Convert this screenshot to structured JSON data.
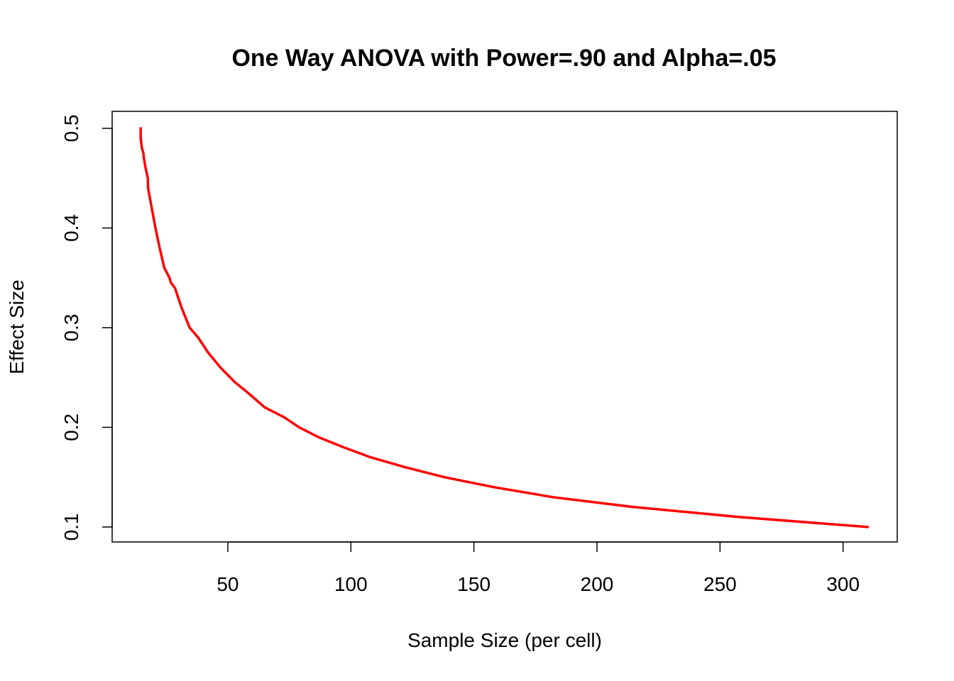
{
  "chart_data": {
    "type": "line",
    "title": "One Way ANOVA with Power=.90 and Alpha=.05",
    "xlabel": "Sample Size (per cell)",
    "ylabel": "Effect Size",
    "xlim": [
      3,
      322
    ],
    "ylim": [
      0.085,
      0.517
    ],
    "x_ticks": [
      50,
      100,
      150,
      200,
      250,
      300
    ],
    "y_ticks": [
      0.1,
      0.2,
      0.3,
      0.4,
      0.5
    ],
    "x_tick_labels": [
      "50",
      "100",
      "150",
      "200",
      "250",
      "300"
    ],
    "y_tick_labels": [
      "0.1",
      "0.2",
      "0.3",
      "0.4",
      "0.5"
    ],
    "grid": false,
    "series": [
      {
        "color": "#ff0000",
        "x": [
          14.6,
          14.6,
          15.1,
          15.7,
          15.9,
          16.6,
          17.5,
          17.6,
          19.1,
          20.6,
          22.3,
          24.2,
          26.3,
          26.9,
          28.5,
          31.2,
          34.5,
          38.0,
          42.0,
          47.0,
          53.0,
          58.0,
          65.0,
          73.0,
          79.0,
          87.0,
          97.0,
          108.0,
          122.0,
          138.0,
          158.0,
          182.0,
          215.0,
          258.0,
          310.0
        ],
        "y": [
          0.5,
          0.49,
          0.48,
          0.475,
          0.47,
          0.46,
          0.45,
          0.44,
          0.42,
          0.4,
          0.38,
          0.36,
          0.35,
          0.345,
          0.34,
          0.32,
          0.3,
          0.29,
          0.275,
          0.26,
          0.245,
          0.235,
          0.22,
          0.21,
          0.2,
          0.19,
          0.18,
          0.17,
          0.16,
          0.15,
          0.14,
          0.13,
          0.12,
          0.11,
          0.1
        ]
      }
    ]
  }
}
